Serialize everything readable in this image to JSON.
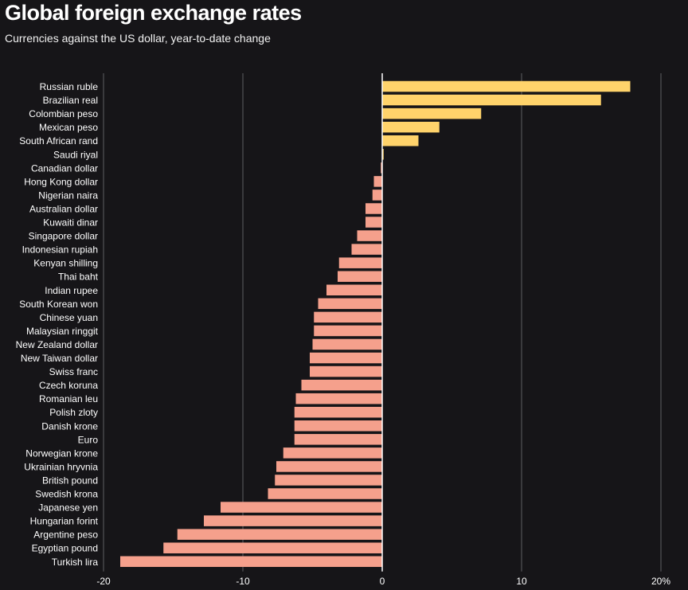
{
  "header": {
    "title": "Global foreign exchange rates",
    "subtitle": "Currencies against the US dollar, year-to-date change"
  },
  "colors": {
    "background": "#161518",
    "positive": "#ffd36b",
    "negative": "#f5a08c",
    "grid": "#5f5e62",
    "zero_line": "#ffffff",
    "text": "#ffffff"
  },
  "chart_data": {
    "type": "bar",
    "orientation": "horizontal",
    "title": "Global foreign exchange rates",
    "subtitle": "Currencies against the US dollar, year-to-date change",
    "xlabel": "",
    "ylabel": "",
    "xlim": [
      -20,
      20
    ],
    "xticks": [
      -20,
      -10,
      0,
      10,
      20
    ],
    "xtick_labels": [
      "-20",
      "-10",
      "0",
      "10",
      "20%"
    ],
    "grid": true,
    "categories": [
      "Russian ruble",
      "Brazilian real",
      "Colombian peso",
      "Mexican peso",
      "South African rand",
      "Saudi riyal",
      "Canadian dollar",
      "Hong Kong dollar",
      "Nigerian naira",
      "Australian dollar",
      "Kuwaiti dinar",
      "Singapore dollar",
      "Indonesian rupiah",
      "Kenyan shilling",
      "Thai baht",
      "Indian rupee",
      "South Korean won",
      "Chinese yuan",
      "Malaysian ringgit",
      "New Zealand dollar",
      "New Taiwan dollar",
      "Swiss franc",
      "Czech koruna",
      "Romanian leu",
      "Polish zloty",
      "Danish krone",
      "Euro",
      "Norwegian krone",
      "Ukrainian hryvnia",
      "British pound",
      "Swedish krona",
      "Japanese yen",
      "Hungarian forint",
      "Argentine peso",
      "Egyptian pound",
      "Turkish lira"
    ],
    "values": [
      17.8,
      15.7,
      7.1,
      4.1,
      2.6,
      0.1,
      -0.1,
      -0.6,
      -0.7,
      -1.2,
      -1.2,
      -1.8,
      -2.2,
      -3.1,
      -3.2,
      -4.0,
      -4.6,
      -4.9,
      -4.9,
      -5.0,
      -5.2,
      -5.2,
      -5.8,
      -6.2,
      -6.3,
      -6.3,
      -6.3,
      -7.1,
      -7.6,
      -7.7,
      -8.2,
      -11.6,
      -12.8,
      -14.7,
      -15.7,
      -18.8
    ]
  }
}
